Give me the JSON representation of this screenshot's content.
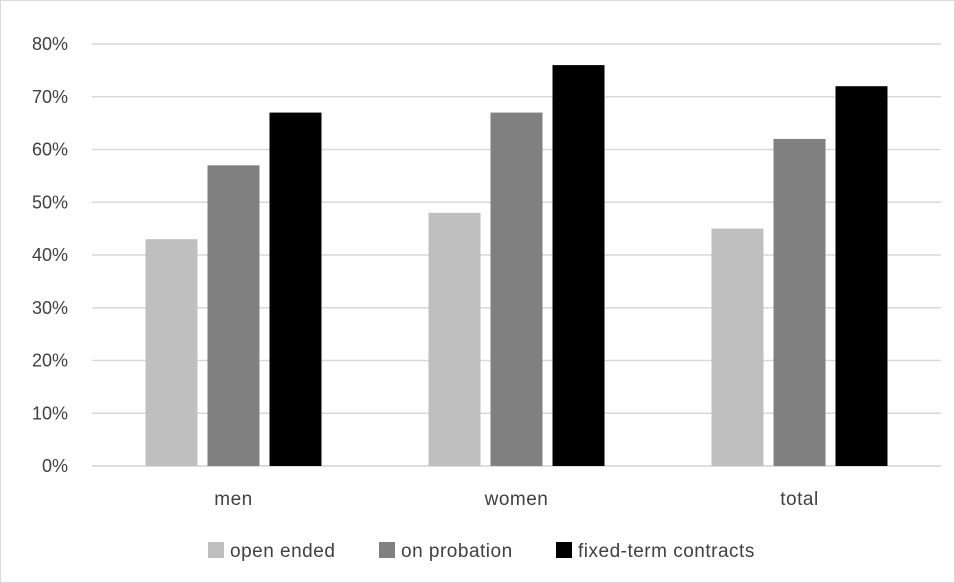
{
  "chart_data": {
    "type": "bar",
    "title": "",
    "xlabel": "",
    "ylabel": "",
    "categories": [
      "men",
      "women",
      "total"
    ],
    "series": [
      {
        "name": "open ended",
        "values": [
          43,
          48,
          45
        ],
        "color": "#bfbfbf"
      },
      {
        "name": "on probation",
        "values": [
          57,
          67,
          62
        ],
        "color": "#808080"
      },
      {
        "name": "fixed-term contracts",
        "values": [
          67,
          76,
          72
        ],
        "color": "#000000"
      }
    ],
    "ylim": [
      0,
      80
    ],
    "yticks": [
      0,
      10,
      20,
      30,
      40,
      50,
      60,
      70,
      80
    ],
    "ytick_labels": [
      "0%",
      "10%",
      "20%",
      "30%",
      "40%",
      "50%",
      "60%",
      "70%",
      "80%"
    ],
    "grid": true,
    "gridline_color": "#d9d9d9",
    "legend_position": "bottom"
  }
}
